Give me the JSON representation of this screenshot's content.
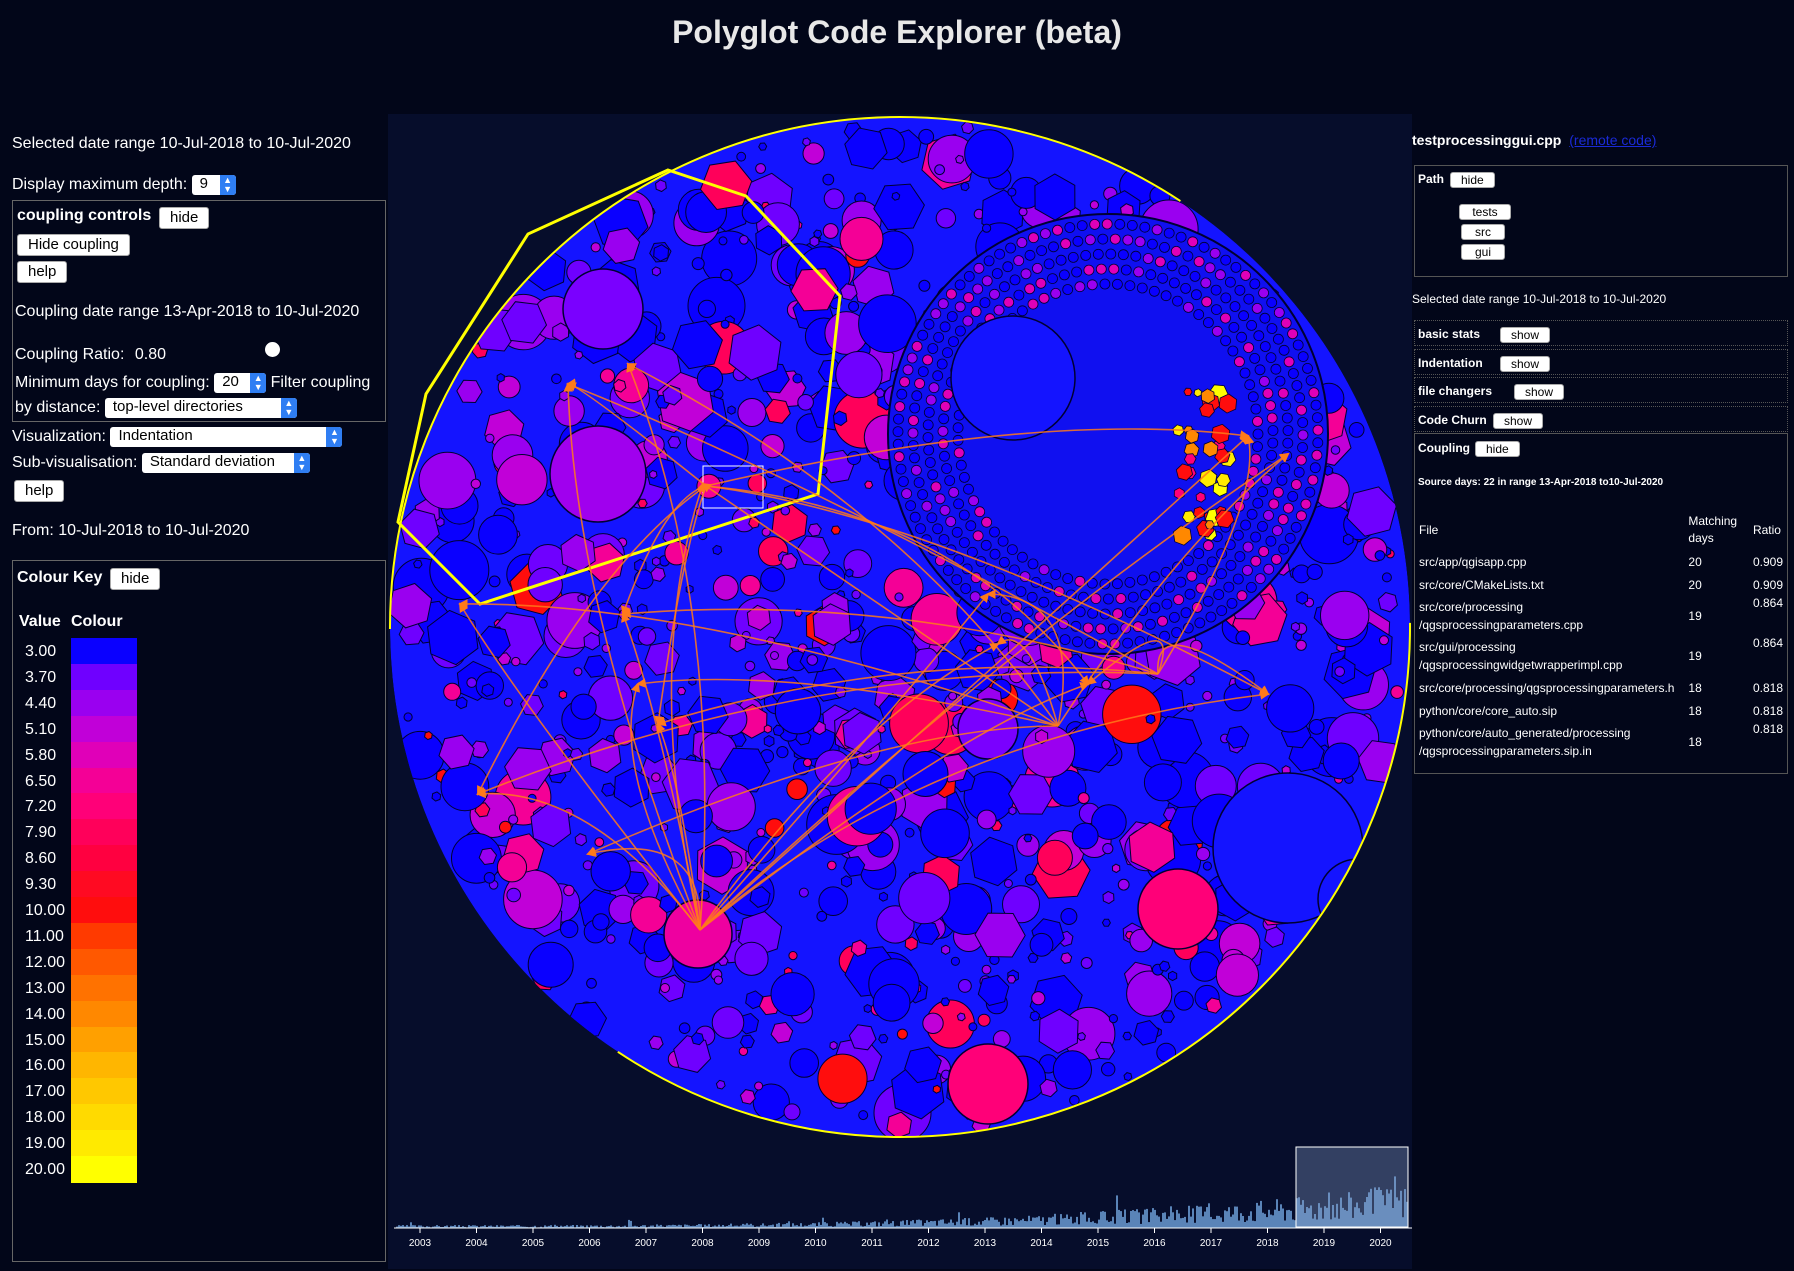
{
  "app": {
    "title": "Polyglot Code Explorer (beta)"
  },
  "left": {
    "selected_range": "Selected date range 10-Jul-2018 to 10-Jul-2020",
    "depth_label": "Display maximum depth:",
    "depth_value": "9",
    "coupling": {
      "title": "coupling controls",
      "hide_label": "hide",
      "hide_coupling_label": "Hide coupling",
      "help_label": "help",
      "date_range": "Coupling date range 13-Apr-2018 to 10-Jul-2020",
      "ratio_label": "Coupling Ratio:",
      "ratio_value": "0.80",
      "ratio_fraction": 0.8,
      "min_days_label": "Minimum days for coupling:",
      "min_days_value": "20",
      "filter_label_1": "Filter coupling",
      "filter_label_2": "by distance:",
      "filter_value": "top-level directories"
    },
    "visualization_label": "Visualization:",
    "visualization_value": "Indentation",
    "subvis_label": "Sub-visualisation:",
    "subvis_value": "Standard deviation",
    "help_label": "help",
    "from_range": "From: 10-Jul-2018 to 10-Jul-2020",
    "colour_key": {
      "title": "Colour Key",
      "hide_label": "hide",
      "value_header": "Value",
      "colour_header": "Colour",
      "rows": [
        {
          "value": "3.00",
          "color": "#0a00ff"
        },
        {
          "value": "3.70",
          "color": "#6f00ff"
        },
        {
          "value": "4.40",
          "color": "#9a00f0"
        },
        {
          "value": "5.10",
          "color": "#c100d8"
        },
        {
          "value": "5.80",
          "color": "#e000b8"
        },
        {
          "value": "6.50",
          "color": "#f40096"
        },
        {
          "value": "7.20",
          "color": "#ff0078"
        },
        {
          "value": "7.90",
          "color": "#ff005a"
        },
        {
          "value": "8.60",
          "color": "#ff0040"
        },
        {
          "value": "9.30",
          "color": "#ff0a22"
        },
        {
          "value": "10.00",
          "color": "#ff0d0d"
        },
        {
          "value": "11.00",
          "color": "#ff3a00"
        },
        {
          "value": "12.00",
          "color": "#ff5800"
        },
        {
          "value": "13.00",
          "color": "#ff7200"
        },
        {
          "value": "14.00",
          "color": "#ff8800"
        },
        {
          "value": "15.00",
          "color": "#ffa000"
        },
        {
          "value": "16.00",
          "color": "#ffb600"
        },
        {
          "value": "17.00",
          "color": "#ffc800"
        },
        {
          "value": "18.00",
          "color": "#ffda00"
        },
        {
          "value": "19.00",
          "color": "#ffea00"
        },
        {
          "value": "20.00",
          "color": "#ffff00"
        }
      ]
    }
  },
  "timeline": {
    "years": [
      "2003",
      "2004",
      "2005",
      "2006",
      "2007",
      "2008",
      "2009",
      "2010",
      "2011",
      "2012",
      "2013",
      "2014",
      "2015",
      "2016",
      "2017",
      "2018",
      "2019",
      "2020"
    ]
  },
  "right": {
    "file_name": "testprocessinggui.cpp",
    "remote_link": "(remote code)",
    "path_label": "Path",
    "path_hide": "hide",
    "path_items": [
      "tests",
      "src",
      "gui"
    ],
    "selected_range": "Selected date range 10-Jul-2018 to 10-Jul-2020",
    "sections": [
      {
        "label": "basic stats",
        "button": "show"
      },
      {
        "label": "Indentation",
        "button": "show"
      },
      {
        "label": "file changers",
        "button": "show"
      },
      {
        "label": "Code Churn",
        "button": "show"
      }
    ],
    "coupling": {
      "label": "Coupling",
      "hide_label": "hide",
      "source_days": "Source days: 22 in range 13-Apr-2018 to10-Jul-2020",
      "col_file": "File",
      "col_matching_1": "Matching",
      "col_matching_2": "days",
      "col_ratio": "Ratio",
      "rows": [
        {
          "file1": "src/app/qgisapp.cpp",
          "file2": "",
          "days": "20",
          "ratio": "0.909"
        },
        {
          "file1": "src/core/CMakeLists.txt",
          "file2": "",
          "days": "20",
          "ratio": "0.909"
        },
        {
          "file1": "src/core/processing",
          "file2": "/qgsprocessingparameters.cpp",
          "days": "19",
          "ratio": "0.864"
        },
        {
          "file1": "src/gui/processing",
          "file2": "/qgsprocessingwidgetwrapperimpl.cpp",
          "days": "19",
          "ratio": "0.864"
        },
        {
          "file1": "src/core/processing/qgsprocessingparameters.h",
          "file2": "",
          "days": "18",
          "ratio": "0.818"
        },
        {
          "file1": "python/core/core_auto.sip",
          "file2": "",
          "days": "18",
          "ratio": "0.818"
        },
        {
          "file1": "python/core/auto_generated/processing",
          "file2": "/qgsprocessingparameters.sip.in",
          "days": "18",
          "ratio": "0.818"
        }
      ]
    }
  },
  "colors": {
    "background": "#020619",
    "vis_background": "#060d2b",
    "selection_outline": "#ffff00",
    "coupling_arrows": "#ff7a1a",
    "timeline_bars": "#5a84b8"
  }
}
